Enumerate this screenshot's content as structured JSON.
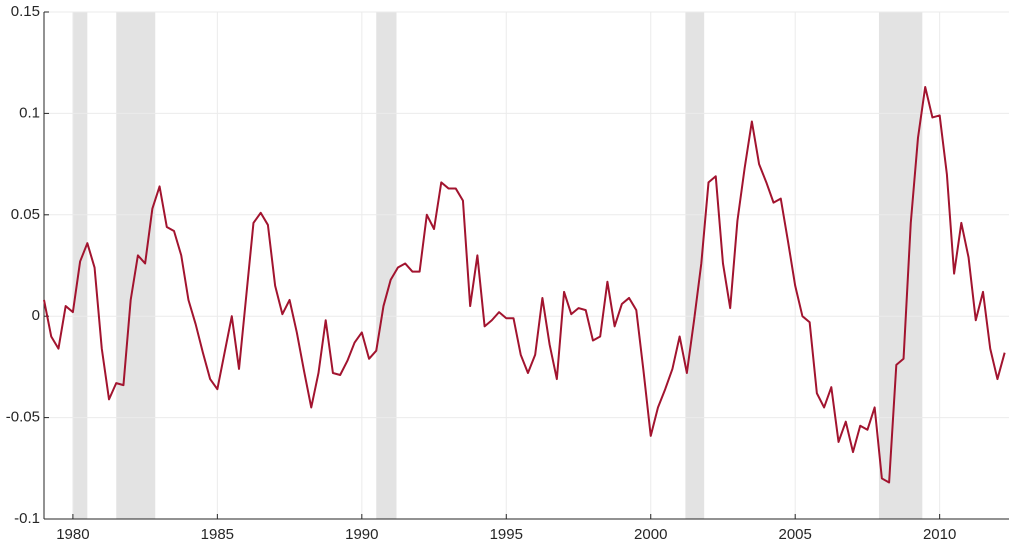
{
  "chart_data": {
    "type": "line",
    "color": "#a2142f",
    "x": [
      1979,
      1979.25,
      1979.5,
      1979.75,
      1980,
      1980.25,
      1980.5,
      1980.75,
      1981,
      1981.25,
      1981.5,
      1981.75,
      1982,
      1982.25,
      1982.5,
      1982.75,
      1983,
      1983.25,
      1983.5,
      1983.75,
      1984,
      1984.25,
      1984.5,
      1984.75,
      1985,
      1985.25,
      1985.5,
      1985.75,
      1986,
      1986.25,
      1986.5,
      1986.75,
      1987,
      1987.25,
      1987.5,
      1987.75,
      1988,
      1988.25,
      1988.5,
      1988.75,
      1989,
      1989.25,
      1989.5,
      1989.75,
      1990,
      1990.25,
      1990.5,
      1990.75,
      1991,
      1991.25,
      1991.5,
      1991.75,
      1992,
      1992.25,
      1992.5,
      1992.75,
      1993,
      1993.25,
      1993.5,
      1993.75,
      1994,
      1994.25,
      1994.5,
      1994.75,
      1995,
      1995.25,
      1995.5,
      1995.75,
      1996,
      1996.25,
      1996.5,
      1996.75,
      1997,
      1997.25,
      1997.5,
      1997.75,
      1998,
      1998.25,
      1998.5,
      1998.75,
      1999,
      1999.25,
      1999.5,
      1999.75,
      2000,
      2000.25,
      2000.5,
      2000.75,
      2001,
      2001.25,
      2001.5,
      2001.75,
      2002,
      2002.25,
      2002.5,
      2002.75,
      2003,
      2003.25,
      2003.5,
      2003.75,
      2004,
      2004.25,
      2004.5,
      2004.75,
      2005,
      2005.25,
      2005.5,
      2005.75,
      2006,
      2006.25,
      2006.5,
      2006.75,
      2007,
      2007.25,
      2007.5,
      2007.75,
      2008,
      2008.25,
      2008.5,
      2008.75,
      2009,
      2009.25,
      2009.5,
      2009.75,
      2010,
      2010.25,
      2010.5,
      2010.75,
      2011,
      2011.25,
      2011.5,
      2011.75,
      2012,
      2012.25
    ],
    "values": [
      0.008,
      -0.01,
      -0.016,
      0.005,
      0.002,
      0.027,
      0.036,
      0.024,
      -0.016,
      -0.041,
      -0.033,
      -0.034,
      0.008,
      0.03,
      0.026,
      0.053,
      0.064,
      0.044,
      0.042,
      0.03,
      0.008,
      -0.004,
      -0.018,
      -0.031,
      -0.036,
      -0.018,
      0.0,
      -0.026,
      0.01,
      0.046,
      0.051,
      0.045,
      0.015,
      0.001,
      0.008,
      -0.008,
      -0.027,
      -0.045,
      -0.028,
      -0.002,
      -0.028,
      -0.029,
      -0.022,
      -0.013,
      -0.008,
      -0.021,
      -0.017,
      0.005,
      0.018,
      0.024,
      0.026,
      0.022,
      0.022,
      0.05,
      0.043,
      0.066,
      0.063,
      0.063,
      0.057,
      0.005,
      0.03,
      -0.005,
      -0.002,
      0.002,
      -0.001,
      -0.001,
      -0.019,
      -0.028,
      -0.019,
      0.009,
      -0.014,
      -0.031,
      0.012,
      0.001,
      0.004,
      0.003,
      -0.012,
      -0.01,
      0.017,
      -0.005,
      0.006,
      0.009,
      0.003,
      -0.027,
      -0.059,
      -0.045,
      -0.036,
      -0.026,
      -0.01,
      -0.028,
      -0.002,
      0.026,
      0.066,
      0.069,
      0.026,
      0.004,
      0.047,
      0.073,
      0.096,
      0.075,
      0.066,
      0.056,
      0.058,
      0.037,
      0.015,
      0.0,
      -0.003,
      -0.038,
      -0.045,
      -0.035,
      -0.062,
      -0.052,
      -0.067,
      -0.054,
      -0.056,
      -0.045,
      -0.08,
      -0.082,
      -0.024,
      -0.021,
      0.046,
      0.088,
      0.113,
      0.098,
      0.099,
      0.07,
      0.021,
      0.046,
      0.029,
      -0.002,
      0.012,
      -0.016,
      -0.031,
      -0.018
    ],
    "shaded_regions": [
      [
        1980,
        1980.5
      ],
      [
        1981.5,
        1982.85
      ],
      [
        1990.5,
        1991.2
      ],
      [
        2001.2,
        2001.85
      ],
      [
        2007.9,
        2009.4
      ]
    ],
    "shade_color": "#e3e3e3",
    "xlim": [
      1979,
      2012.4
    ],
    "xticks": [
      1980,
      1985,
      1990,
      1995,
      2000,
      2005,
      2010
    ],
    "ylim": [
      -0.1,
      0.15
    ],
    "yticks": [
      -0.1,
      -0.05,
      0,
      0.05,
      0.1,
      0.15
    ],
    "grid": true
  }
}
